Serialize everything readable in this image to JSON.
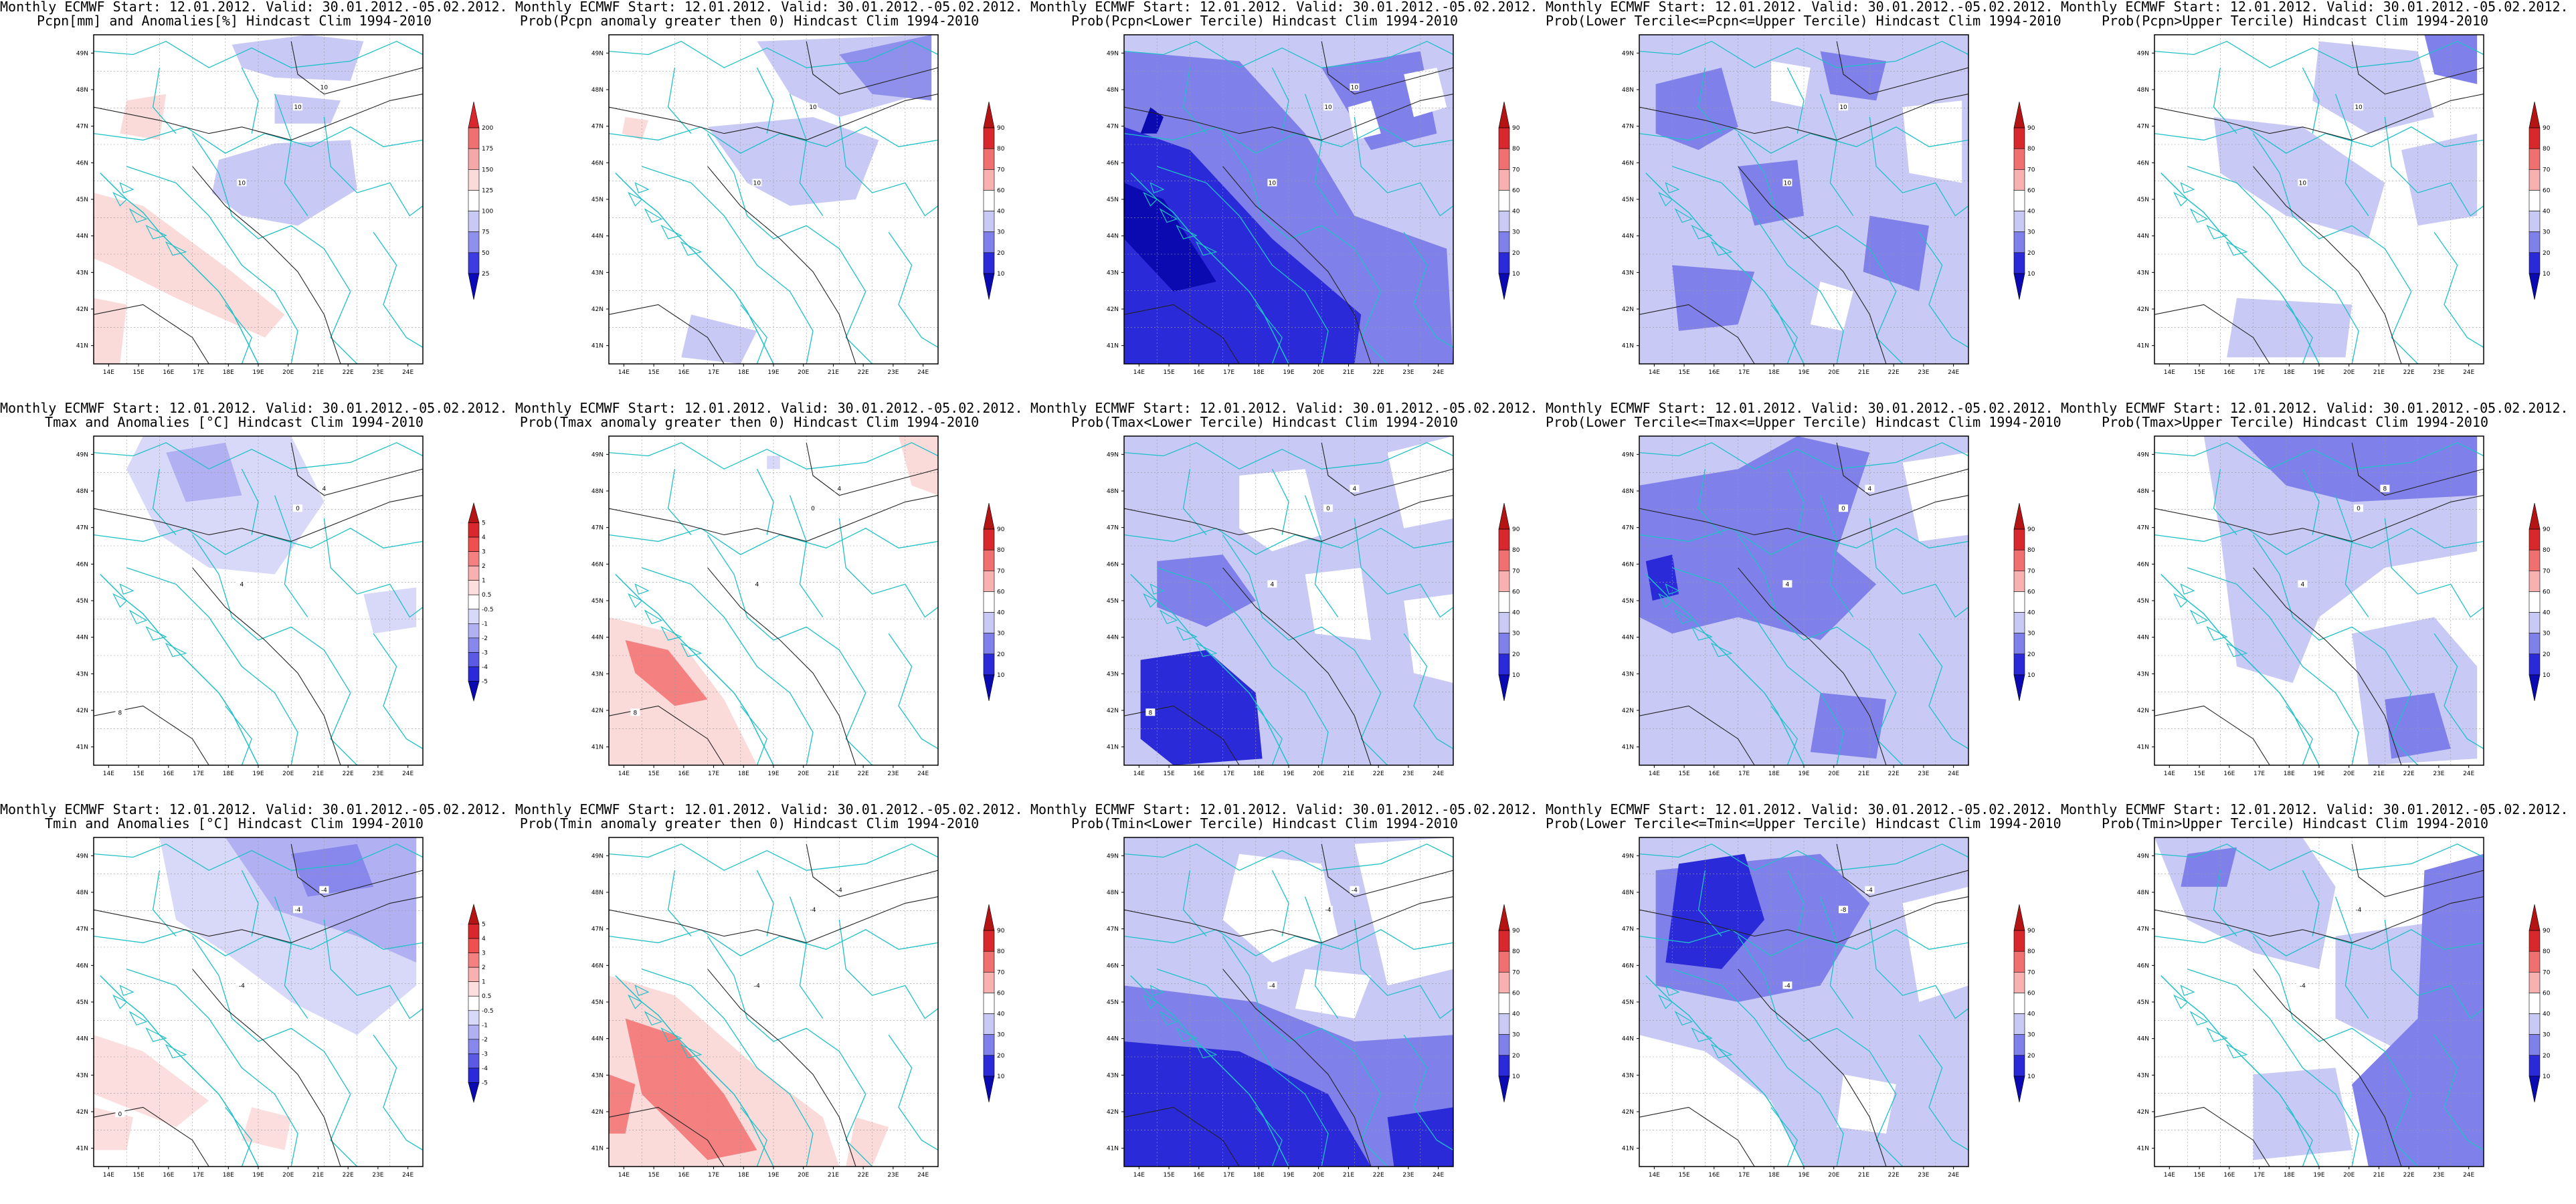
{
  "header_line1": "Monthly ECMWF Start: 12.01.2012. Valid: 30.01.2012.-05.02.2012.",
  "lat_labels": [
    "49N",
    "48N",
    "47N",
    "46N",
    "45N",
    "44N",
    "43N",
    "42N",
    "41N"
  ],
  "lon_labels": [
    "14E",
    "15E",
    "16E",
    "17E",
    "18E",
    "19E",
    "20E",
    "21E",
    "22E",
    "23E",
    "24E"
  ],
  "colorbars": {
    "pcpn": {
      "levels": [
        "200",
        "175",
        "150",
        "125",
        "100",
        "75",
        "50",
        "25"
      ],
      "colors": [
        "#d9272e",
        "#ee7070",
        "#f5a8a8",
        "#fbdada",
        "#ffffff",
        "#c9c9f5",
        "#8f8fec",
        "#3c3ce0",
        "#0a0ab8"
      ]
    },
    "temp": {
      "levels": [
        "5",
        "4",
        "3",
        "2",
        "1",
        "0.5",
        "-0.5",
        "-1",
        "-2",
        "-3",
        "-4",
        "-5"
      ],
      "colors": [
        "#b41414",
        "#d9272e",
        "#ee5050",
        "#f48080",
        "#f8b0b0",
        "#fcdede",
        "#ffffff",
        "#d8d8f8",
        "#b0b0f2",
        "#8888ec",
        "#5a5ae4",
        "#2a2ad8",
        "#0a0ab0"
      ]
    },
    "prob": {
      "levels": [
        "90",
        "80",
        "70",
        "60",
        "40",
        "30",
        "20",
        "10"
      ],
      "colors": [
        "#b41414",
        "#d9272e",
        "#f07070",
        "#f8b0b0",
        "#ffffff",
        "#c9c9f5",
        "#8080ea",
        "#2a2ad8",
        "#0a0ab0"
      ]
    }
  },
  "rows": [
    {
      "panels": [
        {
          "line2": "Pcpn[mm] and Anomalies[%] Hindcast Clim 1994-2010",
          "cbar": "pcpn",
          "contour_labels": [
            "10",
            "10",
            "10"
          ],
          "fill": "pcp_anom"
        },
        {
          "line2": "Prob(Pcpn anomaly greater then 0) Hindcast Clim 1994-2010",
          "cbar": "prob",
          "contour_labels": [
            "10",
            "10"
          ],
          "fill": "pcp_pos"
        },
        {
          "line2": "Prob(Pcpn<Lower Tercile) Hindcast Clim 1994-2010",
          "cbar": "prob",
          "contour_labels": [
            "10",
            "10",
            "10"
          ],
          "fill": "pcp_low"
        },
        {
          "line2": "Prob(Lower Tercile<=Pcpn<=Upper Tercile) Hindcast Clim 1994-2010",
          "cbar": "prob",
          "contour_labels": [
            "10",
            "10"
          ],
          "fill": "pcp_mid"
        },
        {
          "line2": "Prob(Pcpn>Upper Tercile) Hindcast Clim 1994-2010",
          "cbar": "prob",
          "contour_labels": [
            "10",
            "10"
          ],
          "fill": "pcp_up"
        }
      ]
    },
    {
      "panels": [
        {
          "line2": "Tmax and Anomalies [°C] Hindcast Clim 1994-2010",
          "cbar": "temp",
          "contour_labels": [
            "0",
            "4",
            "4",
            "8"
          ],
          "fill": "tmax_anom"
        },
        {
          "line2": "Prob(Tmax anomaly greater then 0) Hindcast Clim 1994-2010",
          "cbar": "prob",
          "contour_labels": [
            "0",
            "4",
            "4",
            "8"
          ],
          "fill": "tmax_pos"
        },
        {
          "line2": "Prob(Tmax<Lower Tercile) Hindcast Clim 1994-2010",
          "cbar": "prob",
          "contour_labels": [
            "0",
            "4",
            "4",
            "8"
          ],
          "fill": "tmax_low"
        },
        {
          "line2": "Prob(Lower Tercile<=Tmax<=Upper Tercile) Hindcast Clim 1994-2010",
          "cbar": "prob",
          "contour_labels": [
            "0",
            "4",
            "4"
          ],
          "fill": "tmax_mid"
        },
        {
          "line2": "Prob(Tmax>Upper Tercile) Hindcast Clim 1994-2010",
          "cbar": "prob",
          "contour_labels": [
            "0",
            "4",
            "8"
          ],
          "fill": "tmax_up"
        }
      ]
    },
    {
      "panels": [
        {
          "line2": "Tmin and Anomalies [°C] Hindcast Clim 1994-2010",
          "cbar": "temp",
          "contour_labels": [
            "-4",
            "-4",
            "-4",
            "0"
          ],
          "fill": "tmin_anom"
        },
        {
          "line2": "Prob(Tmin anomaly greater then 0) Hindcast Clim 1994-2010",
          "cbar": "prob",
          "contour_labels": [
            "-4",
            "-4",
            "-4"
          ],
          "fill": "tmin_pos"
        },
        {
          "line2": "Prob(Tmin<Lower Tercile) Hindcast Clim 1994-2010",
          "cbar": "prob",
          "contour_labels": [
            "-4",
            "-4",
            "-4"
          ],
          "fill": "tmin_low"
        },
        {
          "line2": "Prob(Lower Tercile<=Tmin<=Upper Tercile) Hindcast Clim 1994-2010",
          "cbar": "prob",
          "contour_labels": [
            "-8",
            "-4",
            "-4"
          ],
          "fill": "tmin_mid"
        },
        {
          "line2": "Prob(Tmin>Upper Tercile) Hindcast Clim 1994-2010",
          "cbar": "prob",
          "contour_labels": [
            "-4",
            "-4"
          ],
          "fill": "tmin_up"
        }
      ]
    }
  ]
}
